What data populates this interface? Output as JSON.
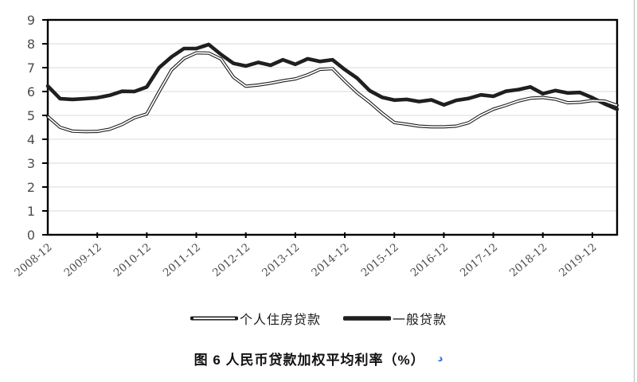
{
  "figure": {
    "caption": "图 6 人民币贷款加权平均利率（%）",
    "caption_mark": "د"
  },
  "legend": [
    {
      "label": "个人住房贷款",
      "style": "double-line"
    },
    {
      "label": "一般贷款",
      "style": "thick-line"
    }
  ],
  "colors": {
    "line": "#1f1f1f",
    "line_core": "#ffffff",
    "grid": "#d8d8d8",
    "axis": "#000000",
    "tick_label": "#4d4d4d",
    "caption_mark_blue": "#2f6fe0"
  },
  "chart_data": {
    "type": "line",
    "title": "图 6 人民币贷款加权平均利率（%）",
    "xlabel": "",
    "ylabel": "",
    "ylim": [
      0,
      9
    ],
    "y_tick_step": 1,
    "grid": "horizontal-only",
    "legend_position": "bottom-center",
    "x_tick_labels": [
      "2008-12",
      "2009-12",
      "2010-12",
      "2011-12",
      "2012-12",
      "2013-12",
      "2014-12",
      "2015-12",
      "2016-12",
      "2017-12",
      "2018-12",
      "2019-12"
    ],
    "x": [
      "2008-12",
      "2009-03",
      "2009-06",
      "2009-09",
      "2009-12",
      "2010-03",
      "2010-06",
      "2010-09",
      "2010-12",
      "2011-03",
      "2011-06",
      "2011-09",
      "2011-12",
      "2012-03",
      "2012-06",
      "2012-09",
      "2012-12",
      "2013-03",
      "2013-06",
      "2013-09",
      "2013-12",
      "2014-03",
      "2014-06",
      "2014-09",
      "2014-12",
      "2015-03",
      "2015-06",
      "2015-09",
      "2015-12",
      "2016-03",
      "2016-06",
      "2016-09",
      "2016-12",
      "2017-03",
      "2017-06",
      "2017-09",
      "2017-12",
      "2018-03",
      "2018-06",
      "2018-09",
      "2018-12",
      "2019-03",
      "2019-06",
      "2019-09",
      "2019-12",
      "2020-03",
      "2020-06"
    ],
    "series": [
      {
        "name": "个人住房贷款",
        "style": "double-line",
        "values": [
          4.95,
          4.5,
          4.34,
          4.32,
          4.33,
          4.42,
          4.62,
          4.9,
          5.06,
          6.0,
          6.9,
          7.38,
          7.62,
          7.61,
          7.36,
          6.6,
          6.22,
          6.27,
          6.35,
          6.45,
          6.53,
          6.7,
          6.93,
          6.96,
          6.44,
          5.95,
          5.55,
          5.1,
          4.7,
          4.63,
          4.55,
          4.52,
          4.52,
          4.55,
          4.69,
          5.01,
          5.26,
          5.42,
          5.6,
          5.72,
          5.75,
          5.68,
          5.53,
          5.55,
          5.62,
          5.6,
          5.42
        ]
      },
      {
        "name": "一般贷款",
        "style": "thick-line",
        "values": [
          6.23,
          5.7,
          5.67,
          5.7,
          5.74,
          5.84,
          6.01,
          6.0,
          6.19,
          7.0,
          7.45,
          7.8,
          7.8,
          7.97,
          7.55,
          7.18,
          7.07,
          7.22,
          7.1,
          7.33,
          7.14,
          7.37,
          7.26,
          7.33,
          6.92,
          6.56,
          6.04,
          5.76,
          5.64,
          5.67,
          5.58,
          5.65,
          5.44,
          5.63,
          5.71,
          5.86,
          5.8,
          6.01,
          6.08,
          6.19,
          5.91,
          6.04,
          5.94,
          5.96,
          5.74,
          5.48,
          5.26
        ]
      }
    ]
  }
}
